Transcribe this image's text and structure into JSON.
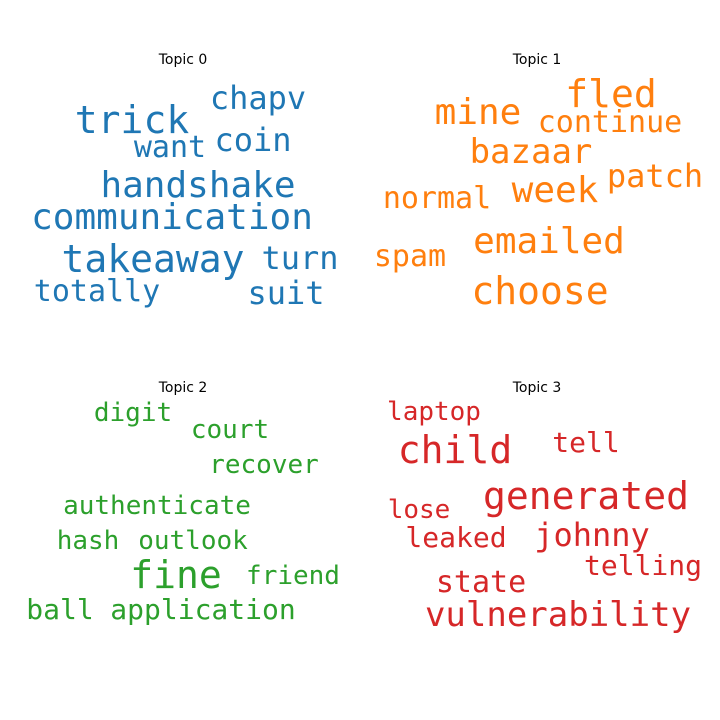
{
  "chart_data": [
    {
      "type": "wordcloud",
      "title": "Topic 0",
      "color": "#1f77b4",
      "words": [
        "trick",
        "chapv",
        "want",
        "coin",
        "handshake",
        "communication",
        "takeaway",
        "turn",
        "totally",
        "suit"
      ]
    },
    {
      "type": "wordcloud",
      "title": "Topic 1",
      "color": "#ff7f0e",
      "words": [
        "fled",
        "mine",
        "continue",
        "bazaar",
        "patch",
        "week",
        "normal",
        "emailed",
        "spam",
        "choose"
      ]
    },
    {
      "type": "wordcloud",
      "title": "Topic 2",
      "color": "#2ca02c",
      "words": [
        "digit",
        "court",
        "recover",
        "authenticate",
        "hash",
        "outlook",
        "fine",
        "friend",
        "ball",
        "application"
      ]
    },
    {
      "type": "wordcloud",
      "title": "Topic 3",
      "color": "#d62728",
      "words": [
        "laptop",
        "child",
        "tell",
        "generated",
        "lose",
        "johnny",
        "leaked",
        "state",
        "telling",
        "vulnerability"
      ]
    }
  ]
}
